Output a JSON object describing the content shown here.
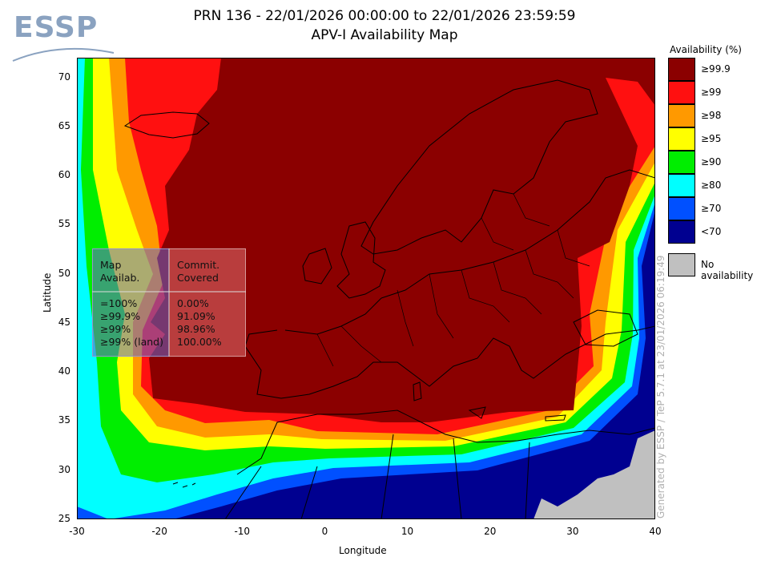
{
  "header": {
    "title_line1": "PRN 136 - 22/01/2026 00:00:00 to 22/01/2026 23:59:59",
    "title_line2": "APV-I Availability Map",
    "logo_text": "ESSP"
  },
  "axes": {
    "x_label": "Longitude",
    "y_label": "Latitude",
    "x_ticks": [
      "-30",
      "-20",
      "-10",
      "0",
      "10",
      "20",
      "30",
      "40"
    ],
    "y_ticks": [
      "70",
      "65",
      "60",
      "55",
      "50",
      "45",
      "40",
      "35",
      "30",
      "25"
    ],
    "x_range": [
      -30,
      40
    ],
    "y_range": [
      25,
      72
    ]
  },
  "legend": {
    "title": "Availability (%)",
    "items": [
      {
        "label": "≥99.9",
        "color": "#8b0000"
      },
      {
        "label": "≥99",
        "color": "#ff1010"
      },
      {
        "label": "≥98",
        "color": "#ff9900"
      },
      {
        "label": "≥95",
        "color": "#ffff00"
      },
      {
        "label": "≥90",
        "color": "#00ee00"
      },
      {
        "label": "≥80",
        "color": "#00ffff"
      },
      {
        "label": "≥70",
        "color": "#0050ff"
      },
      {
        "label": "<70",
        "color": "#000090"
      }
    ],
    "no_availability": {
      "label": "No availability",
      "color": "#c0c0c0"
    }
  },
  "stats_table": {
    "header_left": "Map\nAvailab.",
    "header_right": "Commit.\nCovered",
    "rows": [
      {
        "left": "=100%",
        "right": "0.00%"
      },
      {
        "left": "≥99.9%",
        "right": "91.09%"
      },
      {
        "left": "≥99%",
        "right": "98.96%"
      },
      {
        "left": "≥99% (land)",
        "right": "100.00%"
      }
    ]
  },
  "credit": "Generated by ESSP / TeP 5.7.1 at 23/01/2026 06:19:49"
}
